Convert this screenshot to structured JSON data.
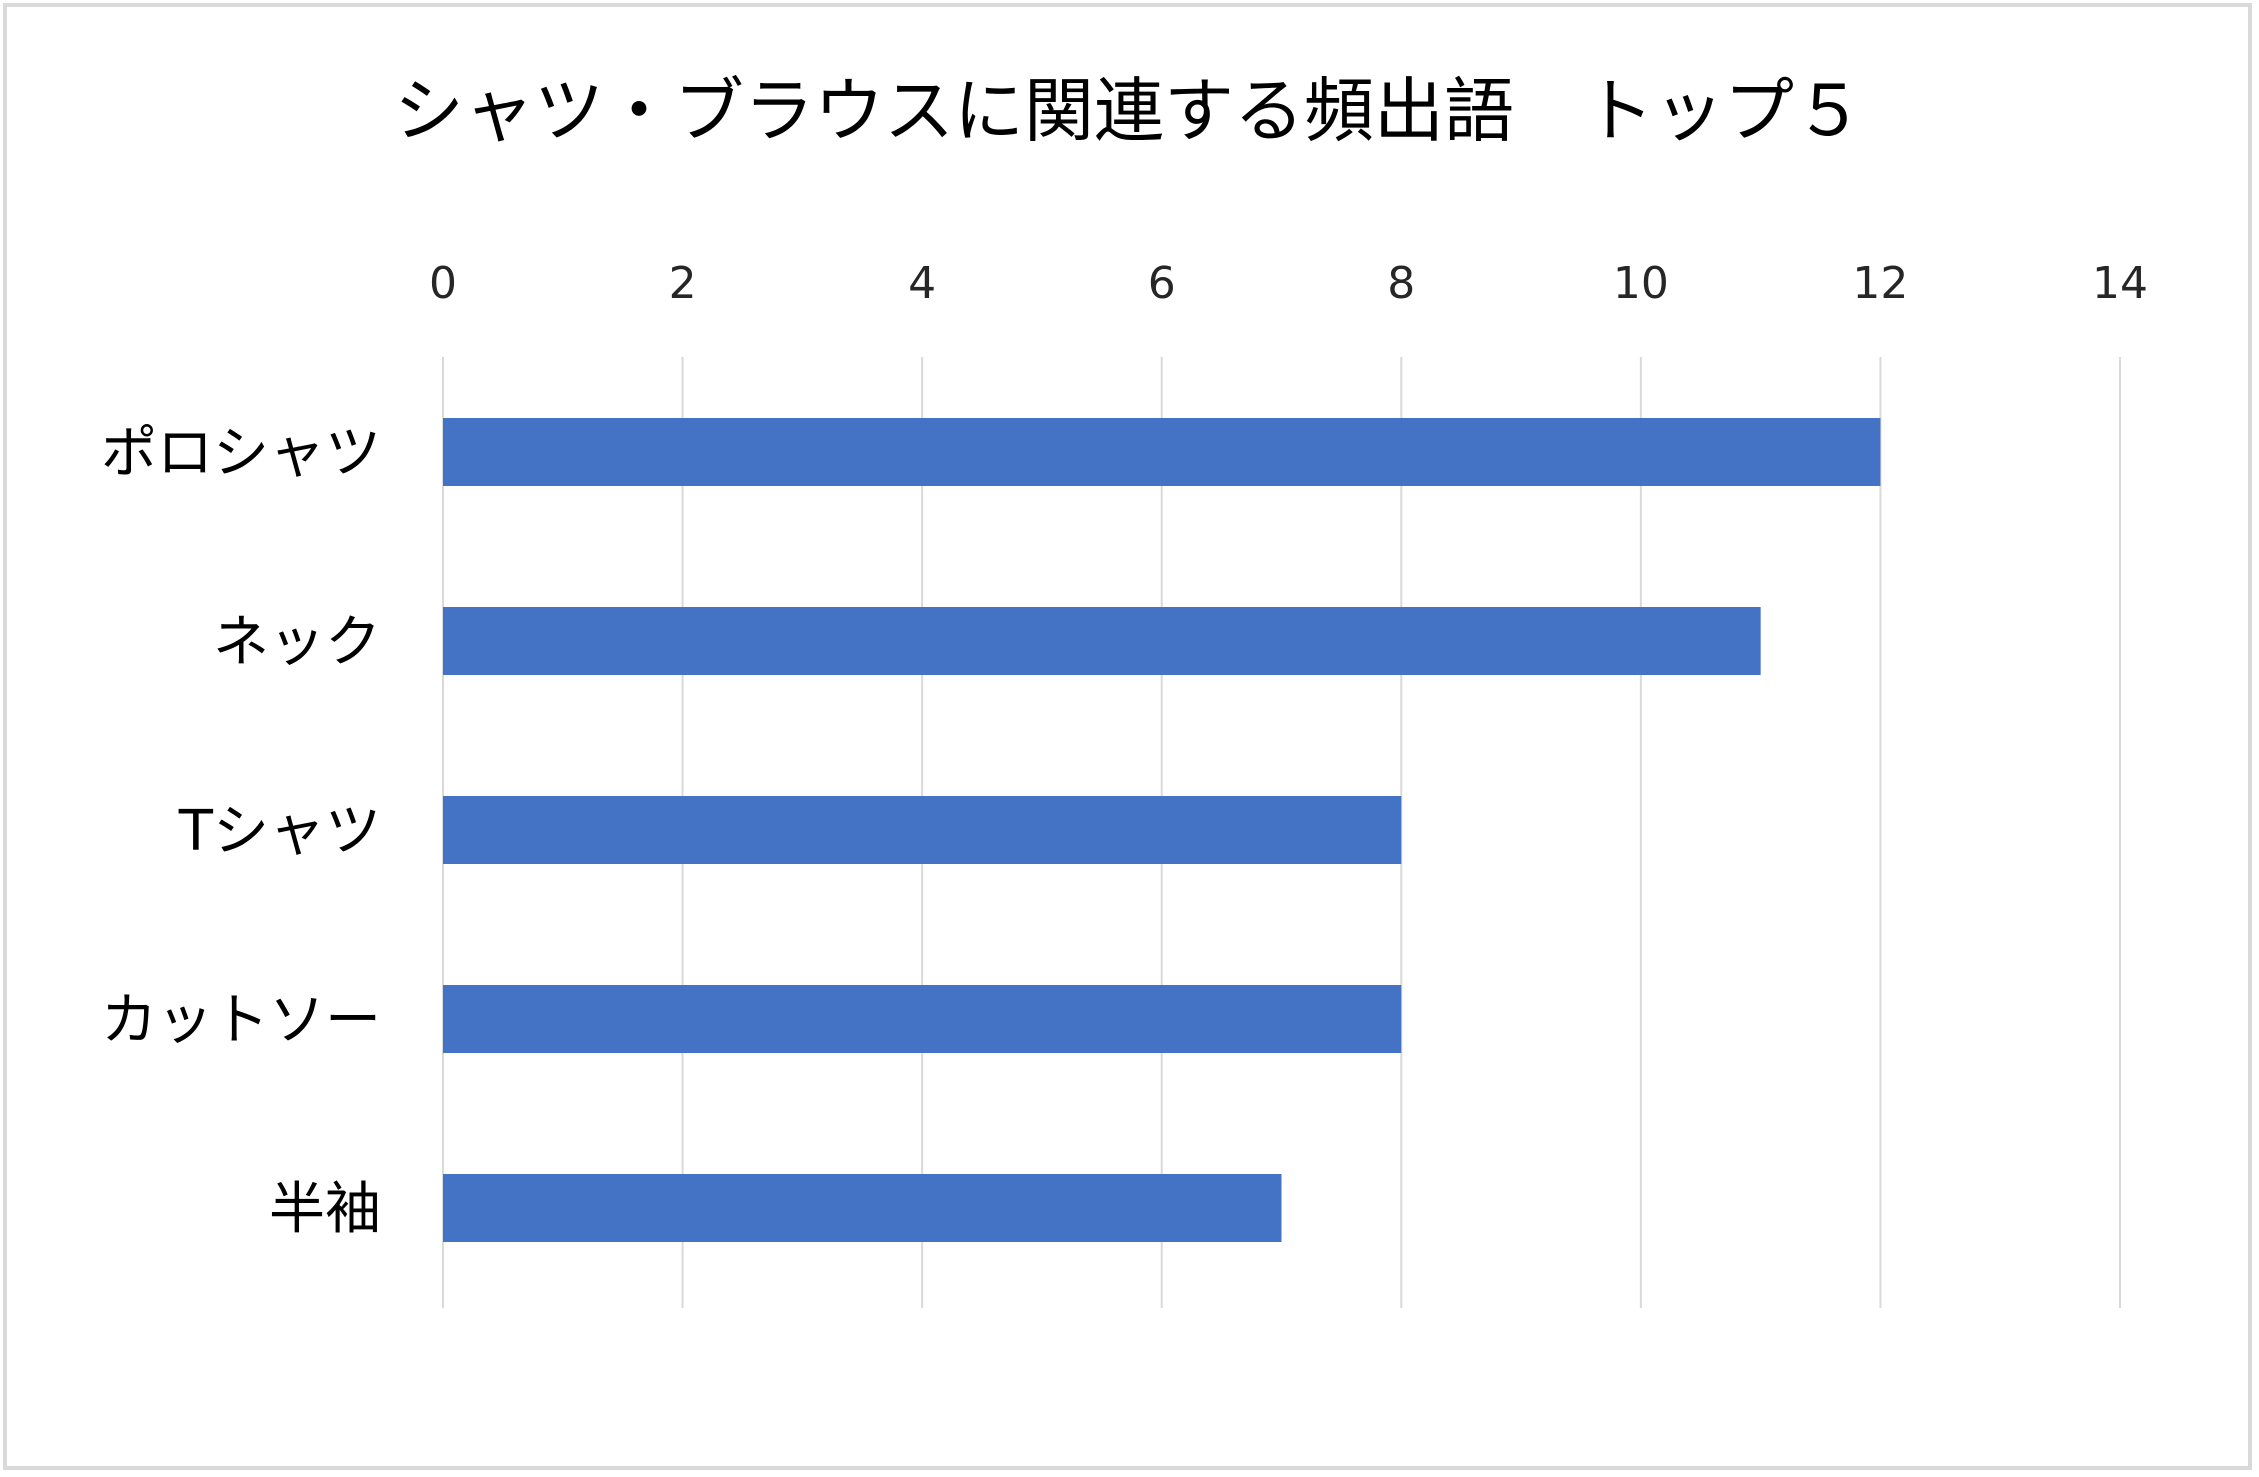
{
  "chart_data": {
    "type": "bar",
    "orientation": "horizontal",
    "title": "シャツ・ブラウスに関連する頻出語　トップ５",
    "categories": [
      "ポロシャツ",
      "ネック",
      "Tシャツ",
      "カットソー",
      "半袖"
    ],
    "values": [
      12,
      11,
      8,
      8,
      7
    ],
    "xlim": [
      0,
      14
    ],
    "xticks": [
      "0",
      "2",
      "4",
      "6",
      "8",
      "10",
      "12",
      "14"
    ],
    "x_axis_position": "top",
    "grid": true,
    "legend": "none",
    "bar_color": "#4472c4",
    "gridline_color": "#d9d9d9"
  }
}
